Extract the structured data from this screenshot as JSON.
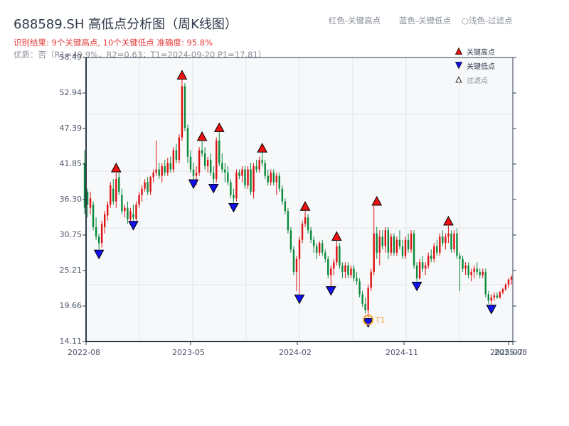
{
  "header": {
    "title": "688589.SH 高低点分析图（周K线图）",
    "result": "识别结果: 9个关键高点, 10个关键低点   准确度: 95.8%",
    "quality": "优质：否（R1=49.9%，R2=0.63；T1=2024-09-20 P1=17.81）",
    "color_legend": [
      "红色-关键高点",
      "蓝色-关键低点",
      "○浅色-过滤点"
    ]
  },
  "legend": {
    "items": [
      {
        "label": "关键高点",
        "symbol": "triangle-up",
        "color": "#ee1111"
      },
      {
        "label": "关键低点",
        "symbol": "triangle-down",
        "color": "#1111ee"
      },
      {
        "label": "过滤点",
        "symbol": "triangle-up-outline",
        "color": "#ffffff"
      }
    ]
  },
  "chart_data": {
    "type": "candlestick",
    "title": "688589.SH 高低点分析图（周K线图）",
    "xlabel": "",
    "ylabel": "",
    "ylim": [
      14.11,
      58.49
    ],
    "y_ticks": [
      "58.49",
      "52.94",
      "47.39",
      "41.85",
      "36.30",
      "30.75",
      "25.21",
      "19.66",
      "14.11"
    ],
    "x_ticks": [
      {
        "label": "2022-08",
        "pos": 0
      },
      {
        "label": "2023-05",
        "pos": 0.245
      },
      {
        "label": "2024-02",
        "pos": 0.495
      },
      {
        "label": "2024-11",
        "pos": 0.745
      },
      {
        "label": "2025-07",
        "pos": 0.99
      },
      {
        "label": "2025-08",
        "pos": 1.0
      }
    ],
    "grid": true,
    "legend_position": "upper right",
    "colors": {
      "up": "#dd1111",
      "down": "#0a8a3a",
      "high_marker": "#ee1111",
      "low_marker": "#1111ee",
      "t1_ring": "#f0a030",
      "background": "#f7f8fa",
      "grid": "#e2e5ea",
      "axis": "#2d3a4a"
    },
    "candles_ohlc": [
      [
        42.0,
        44.0,
        34.0,
        35.0
      ],
      [
        37.5,
        38.0,
        33.5,
        35.5
      ],
      [
        35.0,
        37.5,
        34.0,
        36.5
      ],
      [
        35.5,
        36.0,
        31.5,
        32.0
      ],
      [
        32.0,
        33.5,
        30.0,
        30.5
      ],
      [
        30.5,
        31.0,
        28.5,
        29.5
      ],
      [
        29.5,
        33.0,
        28.8,
        32.5
      ],
      [
        32.0,
        34.5,
        31.0,
        34.0
      ],
      [
        33.8,
        36.0,
        33.0,
        35.5
      ],
      [
        35.5,
        39.0,
        35.0,
        38.5
      ],
      [
        38.0,
        39.5,
        35.5,
        36.0
      ],
      [
        36.0,
        40.5,
        35.0,
        39.5
      ],
      [
        39.8,
        41.0,
        37.0,
        37.5
      ],
      [
        37.0,
        38.0,
        34.0,
        34.5
      ],
      [
        34.5,
        35.5,
        33.5,
        35.0
      ],
      [
        35.0,
        36.0,
        32.5,
        33.2
      ],
      [
        33.2,
        35.0,
        32.8,
        34.5
      ],
      [
        34.0,
        35.5,
        33.0,
        33.5
      ],
      [
        33.3,
        36.0,
        33.0,
        35.5
      ],
      [
        35.5,
        37.5,
        35.0,
        37.0
      ],
      [
        37.0,
        38.5,
        36.0,
        38.0
      ],
      [
        38.0,
        39.5,
        37.5,
        39.0
      ],
      [
        39.0,
        39.8,
        37.0,
        37.5
      ],
      [
        37.5,
        40.0,
        37.0,
        39.8
      ],
      [
        39.8,
        41.0,
        39.0,
        40.5
      ],
      [
        40.5,
        45.5,
        40.0,
        41.0
      ],
      [
        41.0,
        42.0,
        39.5,
        40.0
      ],
      [
        40.0,
        42.0,
        39.0,
        41.5
      ],
      [
        41.5,
        42.5,
        40.0,
        40.5
      ],
      [
        40.5,
        42.8,
        40.0,
        42.0
      ],
      [
        42.0,
        43.0,
        40.5,
        41.0
      ],
      [
        41.0,
        44.5,
        40.5,
        44.0
      ],
      [
        44.0,
        45.0,
        42.0,
        42.5
      ],
      [
        42.5,
        46.5,
        42.0,
        46.0
      ],
      [
        46.0,
        55.0,
        45.5,
        54.0
      ],
      [
        54.0,
        54.5,
        47.0,
        47.5
      ],
      [
        47.5,
        48.0,
        42.0,
        43.0
      ],
      [
        43.0,
        44.0,
        40.5,
        41.0
      ],
      [
        41.0,
        42.0,
        39.5,
        40.0
      ],
      [
        40.0,
        41.5,
        38.5,
        40.5
      ],
      [
        40.5,
        44.5,
        40.0,
        44.0
      ],
      [
        44.0,
        45.4,
        43.0,
        43.5
      ],
      [
        43.5,
        44.5,
        41.0,
        41.5
      ],
      [
        41.5,
        43.0,
        40.5,
        42.5
      ],
      [
        42.5,
        43.5,
        40.0,
        40.5
      ],
      [
        40.5,
        41.5,
        38.8,
        39.5
      ],
      [
        39.5,
        46.0,
        39.0,
        45.5
      ],
      [
        45.5,
        46.8,
        41.5,
        42.0
      ],
      [
        42.0,
        43.5,
        40.5,
        41.0
      ],
      [
        41.0,
        42.0,
        39.0,
        40.5
      ],
      [
        40.5,
        41.5,
        38.5,
        39.0
      ],
      [
        39.0,
        39.5,
        36.5,
        37.0
      ],
      [
        37.0,
        38.0,
        35.8,
        36.5
      ],
      [
        36.5,
        41.0,
        36.0,
        40.5
      ],
      [
        40.5,
        41.0,
        39.5,
        40.0
      ],
      [
        40.0,
        41.5,
        39.0,
        41.0
      ],
      [
        41.0,
        41.5,
        38.0,
        38.5
      ],
      [
        38.5,
        41.5,
        38.0,
        41.0
      ],
      [
        41.0,
        42.0,
        37.0,
        37.5
      ],
      [
        37.5,
        42.0,
        36.5,
        41.5
      ],
      [
        41.5,
        42.5,
        40.5,
        41.0
      ],
      [
        41.0,
        43.0,
        40.5,
        42.5
      ],
      [
        42.5,
        43.6,
        41.5,
        42.0
      ],
      [
        42.0,
        42.5,
        39.5,
        40.0
      ],
      [
        40.0,
        41.0,
        38.5,
        39.0
      ],
      [
        39.0,
        41.0,
        38.5,
        40.5
      ],
      [
        40.5,
        41.0,
        38.5,
        39.0
      ],
      [
        39.0,
        40.5,
        37.0,
        40.0
      ],
      [
        40.0,
        40.5,
        37.5,
        38.0
      ],
      [
        38.0,
        38.5,
        35.5,
        36.0
      ],
      [
        36.0,
        36.5,
        34.0,
        34.5
      ],
      [
        34.5,
        35.0,
        31.0,
        31.5
      ],
      [
        31.5,
        32.0,
        28.0,
        28.5
      ],
      [
        28.5,
        29.0,
        24.5,
        25.0
      ],
      [
        25.0,
        27.5,
        22.0,
        27.0
      ],
      [
        27.0,
        30.5,
        21.5,
        30.0
      ],
      [
        30.0,
        33.0,
        29.5,
        32.5
      ],
      [
        32.5,
        34.5,
        32.0,
        33.5
      ],
      [
        33.5,
        34.0,
        31.0,
        31.5
      ],
      [
        31.5,
        32.0,
        29.5,
        30.0
      ],
      [
        30.0,
        30.5,
        28.0,
        29.0
      ],
      [
        29.0,
        29.5,
        27.0,
        28.0
      ],
      [
        28.0,
        29.8,
        27.5,
        29.5
      ],
      [
        29.5,
        30.0,
        27.5,
        28.0
      ],
      [
        28.0,
        28.5,
        26.5,
        27.0
      ],
      [
        27.0,
        27.5,
        24.0,
        24.5
      ],
      [
        24.5,
        26.0,
        22.8,
        25.5
      ],
      [
        25.5,
        27.0,
        24.5,
        26.5
      ],
      [
        26.5,
        29.8,
        26.0,
        29.0
      ],
      [
        29.0,
        29.5,
        25.5,
        26.0
      ],
      [
        26.0,
        26.5,
        24.0,
        25.0
      ],
      [
        25.0,
        26.5,
        24.0,
        26.0
      ],
      [
        26.0,
        26.5,
        24.0,
        24.5
      ],
      [
        24.5,
        26.0,
        24.0,
        25.5
      ],
      [
        25.5,
        26.0,
        23.5,
        24.0
      ],
      [
        24.0,
        25.0,
        23.0,
        23.5
      ],
      [
        23.5,
        24.0,
        21.0,
        21.5
      ],
      [
        21.5,
        22.0,
        19.5,
        20.0
      ],
      [
        20.0,
        21.0,
        18.5,
        19.0
      ],
      [
        19.0,
        23.0,
        17.81,
        22.5
      ],
      [
        22.5,
        25.5,
        22.0,
        25.0
      ],
      [
        25.0,
        35.3,
        24.5,
        31.0
      ],
      [
        31.0,
        32.0,
        27.0,
        28.0
      ],
      [
        28.0,
        31.5,
        26.0,
        30.5
      ],
      [
        30.5,
        31.5,
        28.5,
        29.0
      ],
      [
        29.0,
        32.0,
        28.0,
        31.5
      ],
      [
        31.5,
        32.0,
        27.0,
        28.0
      ],
      [
        28.0,
        31.0,
        27.5,
        30.5
      ],
      [
        30.5,
        31.0,
        27.5,
        28.0
      ],
      [
        28.0,
        30.5,
        27.5,
        30.0
      ],
      [
        30.0,
        31.5,
        28.5,
        29.0
      ],
      [
        29.0,
        30.0,
        27.0,
        27.5
      ],
      [
        27.5,
        30.5,
        27.0,
        30.0
      ],
      [
        30.0,
        31.0,
        28.0,
        28.5
      ],
      [
        28.5,
        31.5,
        28.0,
        31.0
      ],
      [
        31.0,
        31.5,
        25.5,
        26.0
      ],
      [
        26.0,
        26.5,
        23.5,
        24.0
      ],
      [
        24.0,
        27.0,
        23.8,
        26.5
      ],
      [
        26.5,
        27.5,
        25.0,
        25.5
      ],
      [
        25.5,
        26.5,
        24.5,
        26.0
      ],
      [
        26.0,
        28.0,
        25.5,
        27.5
      ],
      [
        27.5,
        28.5,
        26.5,
        27.0
      ],
      [
        27.0,
        29.5,
        26.5,
        29.0
      ],
      [
        29.0,
        30.0,
        27.5,
        28.0
      ],
      [
        28.0,
        31.0,
        27.5,
        30.5
      ],
      [
        30.5,
        31.5,
        29.0,
        29.5
      ],
      [
        29.5,
        31.0,
        28.5,
        30.5
      ],
      [
        30.5,
        32.2,
        29.5,
        31.0
      ],
      [
        31.0,
        31.5,
        28.0,
        28.5
      ],
      [
        28.5,
        31.5,
        28.0,
        31.0
      ],
      [
        31.0,
        31.8,
        27.0,
        27.5
      ],
      [
        27.5,
        28.0,
        22.0,
        27.0
      ],
      [
        27.0,
        27.5,
        25.0,
        25.5
      ],
      [
        25.5,
        26.5,
        24.5,
        26.0
      ],
      [
        26.0,
        26.5,
        24.0,
        24.5
      ],
      [
        24.5,
        25.5,
        23.5,
        25.0
      ],
      [
        25.0,
        26.0,
        24.0,
        25.5
      ],
      [
        25.5,
        26.5,
        24.5,
        25.0
      ],
      [
        25.0,
        25.5,
        24.0,
        24.5
      ],
      [
        24.5,
        25.5,
        24.0,
        25.0
      ],
      [
        25.0,
        25.5,
        21.0,
        21.5
      ],
      [
        21.5,
        22.0,
        20.0,
        20.5
      ],
      [
        20.5,
        21.5,
        19.9,
        21.0
      ],
      [
        21.0,
        21.8,
        20.5,
        21.3
      ],
      [
        21.3,
        21.8,
        20.8,
        21.0
      ],
      [
        21.0,
        22.0,
        20.8,
        21.8
      ],
      [
        21.8,
        22.5,
        21.5,
        22.3
      ],
      [
        22.3,
        23.2,
        22.0,
        23.0
      ],
      [
        23.0,
        24.0,
        22.5,
        23.8
      ],
      [
        23.8,
        24.5,
        23.0,
        24.2
      ]
    ],
    "key_highs": [
      {
        "index": 11,
        "price": 40.5
      },
      {
        "index": 34,
        "price": 55.0
      },
      {
        "index": 41,
        "price": 45.4
      },
      {
        "index": 47,
        "price": 46.8
      },
      {
        "index": 62,
        "price": 43.6
      },
      {
        "index": 77,
        "price": 34.5
      },
      {
        "index": 88,
        "price": 29.8
      },
      {
        "index": 102,
        "price": 35.3
      },
      {
        "index": 127,
        "price": 32.2
      }
    ],
    "key_lows": [
      {
        "index": 5,
        "price": 28.5
      },
      {
        "index": 17,
        "price": 33.0
      },
      {
        "index": 38,
        "price": 39.5
      },
      {
        "index": 45,
        "price": 38.8
      },
      {
        "index": 52,
        "price": 35.8
      },
      {
        "index": 75,
        "price": 21.5
      },
      {
        "index": 86,
        "price": 22.8
      },
      {
        "index": 99,
        "price": 17.81
      },
      {
        "index": 116,
        "price": 23.5
      },
      {
        "index": 142,
        "price": 19.9
      }
    ],
    "t1": {
      "index": 99,
      "price": 17.81,
      "date": "2024-09-20",
      "label": "T1"
    }
  }
}
